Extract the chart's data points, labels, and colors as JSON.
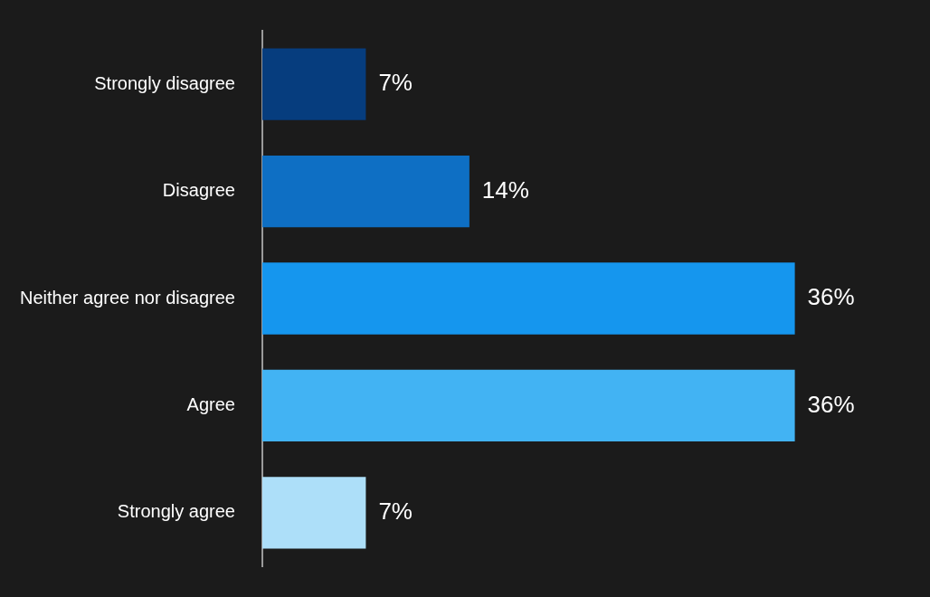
{
  "chart_data": {
    "type": "bar",
    "orientation": "horizontal",
    "categories": [
      "Strongly disagree",
      "Disagree",
      "Neither agree nor disagree",
      "Agree",
      "Strongly agree"
    ],
    "values": [
      7,
      14,
      36,
      36,
      7
    ],
    "colors": [
      "#063d7e",
      "#0e6fc4",
      "#1596ee",
      "#42b3f3",
      "#addff9"
    ],
    "value_labels": [
      "7%",
      "14%",
      "36%",
      "36%",
      "7%"
    ],
    "legend": false
  }
}
